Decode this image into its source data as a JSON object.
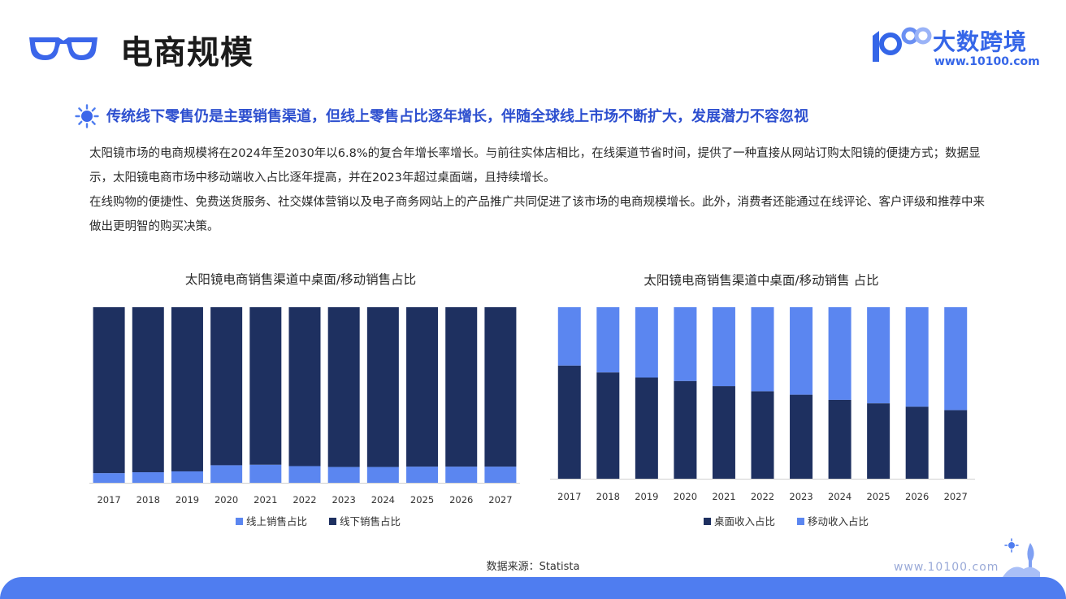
{
  "header": {
    "title": "电商规模",
    "brand_name": "大数跨境",
    "brand_url": "www.10100.com"
  },
  "headline": "传统线下零售仍是主要销售渠道，但线上零售占比逐年增长，伴随全球线上市场不断扩大，发展潜力不容忽视",
  "paragraphs": [
    "太阳镜市场的电商规模将在2024年至2030年以6.8%的复合年增长率增长。与前往实体店相比，在线渠道节省时间，提供了一种直接从网站订购太阳镜的便捷方式；数据显示，太阳镜电商市场中移动端收入占比逐年提高，并在2023年超过桌面端，且持续增长。",
    "在线购物的便捷性、免费送货服务、社交媒体营销以及电子商务网站上的产品推广共同促进了该市场的电商规模增长。此外，消费者还能通过在线评论、客户评级和推荐中来做出更明智的购买决策。"
  ],
  "chart_data": [
    {
      "type": "bar",
      "stacked": true,
      "title": "太阳镜电商销售渠道中桌面/移动销售占比",
      "categories": [
        "2017",
        "2018",
        "2019",
        "2020",
        "2021",
        "2022",
        "2023",
        "2024",
        "2025",
        "2026",
        "2027"
      ],
      "series": [
        {
          "name": "线上销售占比",
          "color": "#5b86f0",
          "values": [
            5.5,
            6.0,
            6.5,
            10.0,
            10.3,
            9.5,
            9.0,
            9.0,
            9.2,
            9.2,
            9.2
          ]
        },
        {
          "name": "线下销售占比",
          "color": "#1e3060",
          "values": [
            94.5,
            94.0,
            93.5,
            90.0,
            89.7,
            90.5,
            91.0,
            91.0,
            90.8,
            90.8,
            90.8
          ]
        }
      ],
      "ylim": [
        0,
        100
      ],
      "legend": "bottom"
    },
    {
      "type": "bar",
      "stacked": true,
      "title": "太阳镜电商销售渠道中桌面/移动销售 占比",
      "categories": [
        "2017",
        "2018",
        "2019",
        "2020",
        "2021",
        "2022",
        "2023",
        "2024",
        "2025",
        "2026",
        "2027"
      ],
      "series": [
        {
          "name": "桌面收入占比",
          "color": "#1e3060",
          "values": [
            66.0,
            62.0,
            59.0,
            57.0,
            54.0,
            51.0,
            49.0,
            46.0,
            44.0,
            42.0,
            40.0
          ]
        },
        {
          "name": "移动收入占比",
          "color": "#5b86f0",
          "values": [
            34.0,
            38.0,
            41.0,
            43.0,
            46.0,
            49.0,
            51.0,
            54.0,
            56.0,
            58.0,
            60.0
          ]
        }
      ],
      "ylim": [
        0,
        100
      ],
      "legend": "bottom"
    }
  ],
  "source": "数据来源：Statista",
  "footer_url": "www.10100.com"
}
